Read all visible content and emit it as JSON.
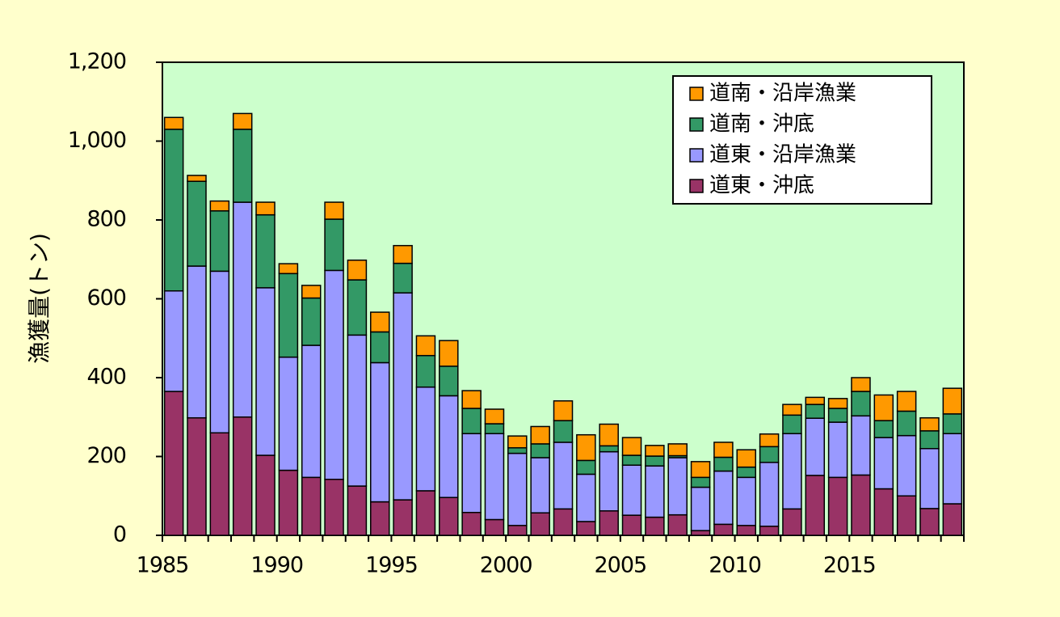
{
  "chart_data": {
    "type": "bar",
    "stacked": true,
    "ylabel": "漁獲量(トン)",
    "ylim": [
      0,
      1200
    ],
    "yticks": [
      0,
      200,
      400,
      600,
      800,
      1000,
      1200
    ],
    "ytick_labels": [
      "0",
      "200",
      "400",
      "600",
      "800",
      "1,000",
      "1,200"
    ],
    "xtick_labels": [
      "1985",
      "1990",
      "1995",
      "2000",
      "2005",
      "2010",
      "2015"
    ],
    "categories": [
      "1985",
      "1986",
      "1987",
      "1988",
      "1989",
      "1990",
      "1991",
      "1992",
      "1993",
      "1994",
      "1995",
      "1996",
      "1997",
      "1998",
      "1999",
      "2000",
      "2001",
      "2002",
      "2003",
      "2004",
      "2005",
      "2006",
      "2007",
      "2008",
      "2009",
      "2010",
      "2011",
      "2012",
      "2013",
      "2014",
      "2015",
      "2016",
      "2017",
      "2018",
      "2019"
    ],
    "series": [
      {
        "name": "道東・沖底",
        "color": "#993366",
        "values": [
          365,
          298,
          260,
          300,
          203,
          165,
          147,
          142,
          125,
          85,
          90,
          113,
          96,
          58,
          40,
          25,
          57,
          67,
          35,
          62,
          51,
          46,
          52,
          12,
          28,
          25,
          23,
          67,
          152,
          147,
          153,
          118,
          100,
          68,
          80
        ]
      },
      {
        "name": "道東・沿岸漁業",
        "color": "#9999ff",
        "values": [
          255,
          385,
          410,
          545,
          425,
          287,
          335,
          530,
          383,
          353,
          525,
          263,
          258,
          200,
          218,
          183,
          140,
          169,
          120,
          150,
          127,
          130,
          145,
          110,
          135,
          122,
          162,
          191,
          145,
          140,
          150,
          130,
          153,
          152,
          178
        ]
      },
      {
        "name": "道南・沖底",
        "color": "#339966",
        "values": [
          410,
          215,
          153,
          185,
          185,
          212,
          120,
          130,
          140,
          78,
          75,
          80,
          75,
          64,
          25,
          14,
          35,
          55,
          35,
          15,
          25,
          25,
          5,
          25,
          35,
          26,
          40,
          47,
          35,
          35,
          62,
          43,
          62,
          45,
          50
        ]
      },
      {
        "name": "道南・沿岸漁業",
        "color": "#ff9900",
        "values": [
          30,
          15,
          25,
          40,
          32,
          25,
          32,
          43,
          50,
          50,
          45,
          50,
          65,
          45,
          37,
          30,
          44,
          50,
          65,
          55,
          45,
          27,
          30,
          40,
          38,
          44,
          32,
          27,
          18,
          25,
          35,
          65,
          50,
          33,
          65
        ]
      }
    ],
    "legend_position": "top-right",
    "plot_background": "#ccffcc",
    "page_background": "#ffffcc",
    "grid": false
  }
}
